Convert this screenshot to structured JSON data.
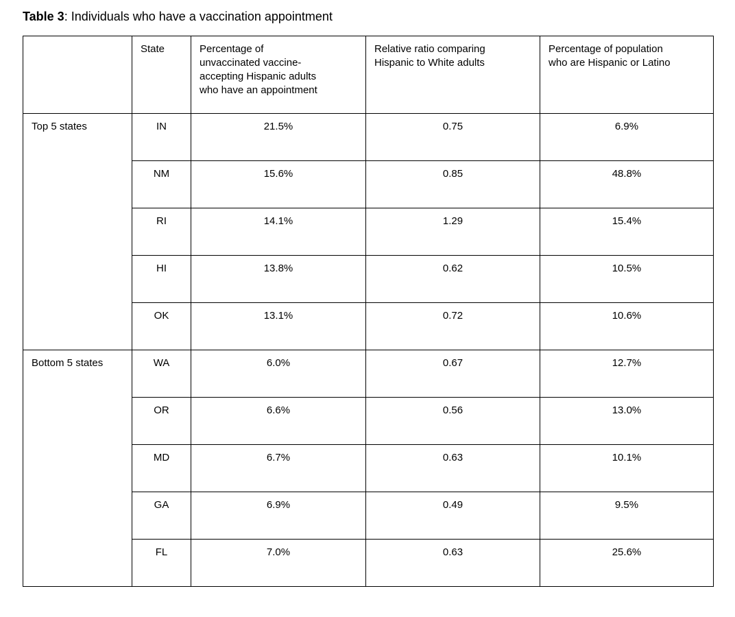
{
  "page": {
    "title_label": "Table 3",
    "title_rest": ": Individuals who have a vaccination appointment"
  },
  "table": {
    "headers": {
      "group": "",
      "state": "State",
      "pct_appointment": "Percentage of unvaccinated vaccine-accepting Hispanic adults who have an appointment",
      "relative_ratio": "Relative ratio comparing Hispanic to White adults",
      "pct_population": "Percentage of population who are Hispanic or Latino"
    },
    "groups": [
      {
        "label": "Top 5 states",
        "rows": [
          {
            "state": "IN",
            "pct_appointment": "21.5%",
            "relative_ratio": "0.75",
            "pct_population": "6.9%"
          },
          {
            "state": "NM",
            "pct_appointment": "15.6%",
            "relative_ratio": "0.85",
            "pct_population": "48.8%"
          },
          {
            "state": "RI",
            "pct_appointment": "14.1%",
            "relative_ratio": "1.29",
            "pct_population": "15.4%"
          },
          {
            "state": "HI",
            "pct_appointment": "13.8%",
            "relative_ratio": "0.62",
            "pct_population": "10.5%"
          },
          {
            "state": "OK",
            "pct_appointment": "13.1%",
            "relative_ratio": "0.72",
            "pct_population": "10.6%"
          }
        ]
      },
      {
        "label": "Bottom 5 states",
        "rows": [
          {
            "state": "WA",
            "pct_appointment": "6.0%",
            "relative_ratio": "0.67",
            "pct_population": "12.7%"
          },
          {
            "state": "OR",
            "pct_appointment": "6.6%",
            "relative_ratio": "0.56",
            "pct_population": "13.0%"
          },
          {
            "state": "MD",
            "pct_appointment": "6.7%",
            "relative_ratio": "0.63",
            "pct_population": "10.1%"
          },
          {
            "state": "GA",
            "pct_appointment": "6.9%",
            "relative_ratio": "0.49",
            "pct_population": "9.5%"
          },
          {
            "state": "FL",
            "pct_appointment": "7.0%",
            "relative_ratio": "0.63",
            "pct_population": "25.6%"
          }
        ]
      }
    ],
    "colors": {
      "border": "#000000",
      "text": "#000000",
      "background": "#ffffff"
    }
  }
}
